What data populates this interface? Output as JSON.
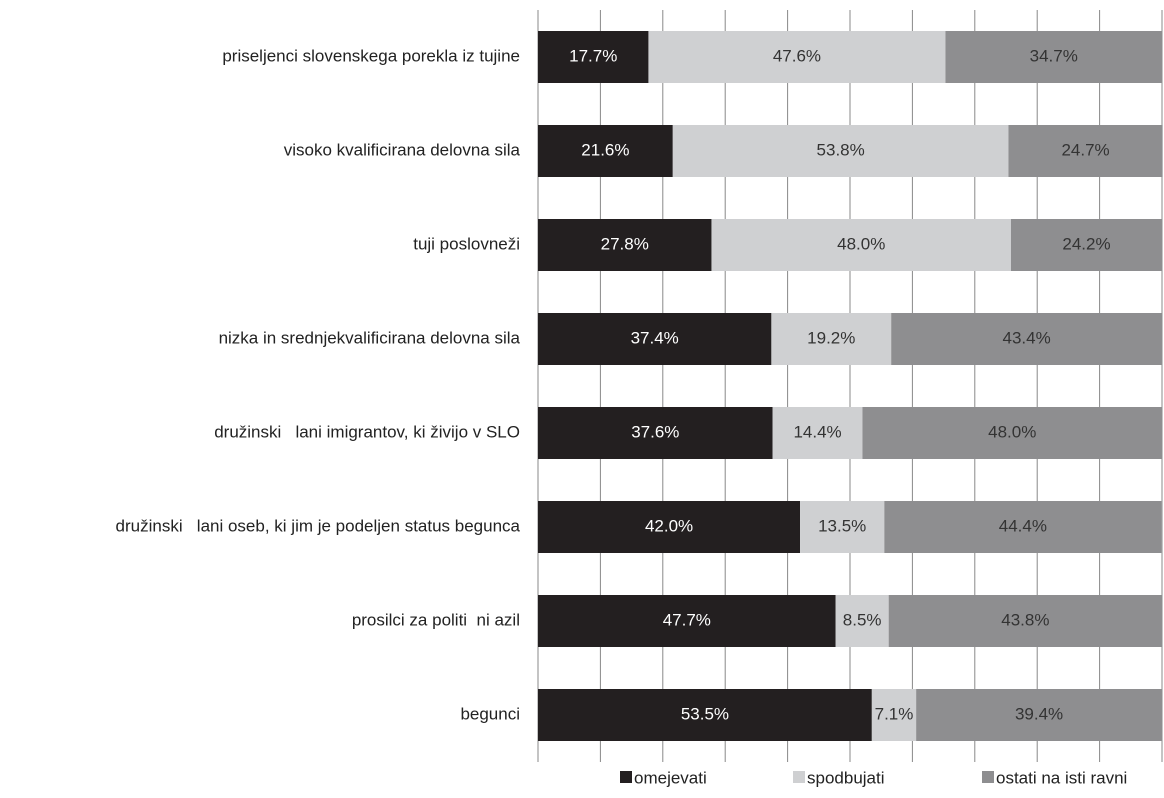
{
  "chart_data": {
    "type": "stacked_bar_horizontal",
    "categories": [
      "priseljenci slovenskega porekla iz tujine",
      "visoko kvalificirana delovna sila",
      "tuji poslovneži",
      "nizka in srednjekvalificirana delovna sila",
      "družinski   lani imigrantov, ki živijo v SLO",
      "družinski   lani oseb, ki jim je podeljen status begunca",
      "prosilci za politi  ni azil",
      "begunci"
    ],
    "series": [
      {
        "name": "omejevati",
        "color": "#231f20",
        "values": [
          17.7,
          21.6,
          27.8,
          37.4,
          37.6,
          42.0,
          47.7,
          53.5
        ],
        "value_labels": [
          "17.7%",
          "21.6%",
          "27.8%",
          "37.4%",
          "37.6%",
          "42.0%",
          "47.7%",
          "53.5%"
        ]
      },
      {
        "name": "spodbujati",
        "color": "#cfd0d2",
        "values": [
          47.6,
          53.8,
          48.0,
          19.2,
          14.4,
          13.5,
          8.5,
          7.1
        ],
        "value_labels": [
          "47.6%",
          "53.8%",
          "48.0%",
          "19.2%",
          "14.4%",
          "13.5%",
          "8.5%",
          "7.1%"
        ]
      },
      {
        "name": "ostati na isti ravni",
        "color": "#8e8e90",
        "values": [
          34.7,
          24.7,
          24.2,
          43.4,
          48.0,
          44.4,
          43.8,
          39.4
        ],
        "value_labels": [
          "34.7%",
          "24.7%",
          "24.2%",
          "43.4%",
          "48.0%",
          "44.4%",
          "43.8%",
          "39.4%"
        ]
      }
    ],
    "xlim": [
      0,
      100
    ],
    "xticks": [
      0,
      10,
      20,
      30,
      40,
      50,
      60,
      70,
      80,
      90,
      100
    ],
    "grid": true,
    "legend": "bottom"
  }
}
